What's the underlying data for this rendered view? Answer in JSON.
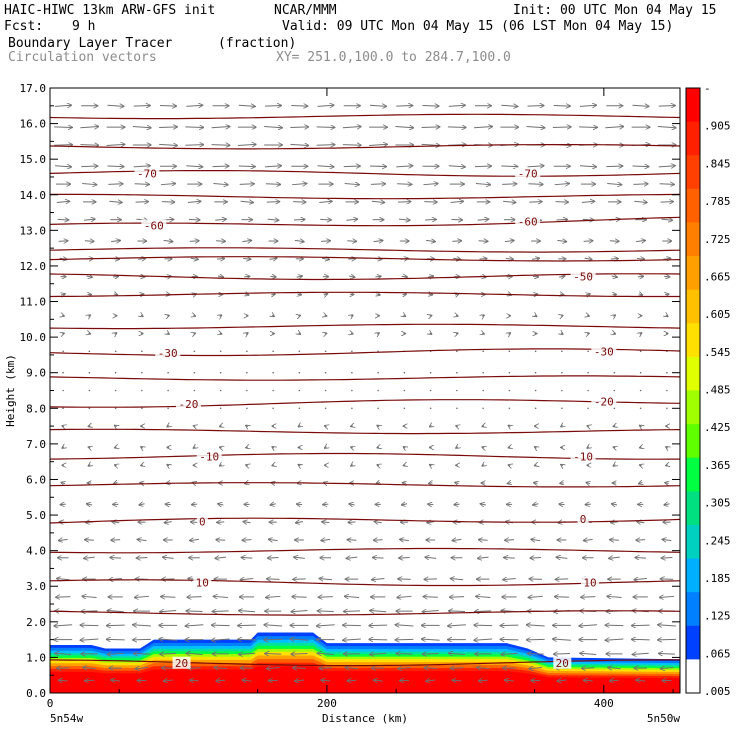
{
  "header": {
    "model": "HAIC-HIWC 13km ARW-GFS init",
    "org": "NCAR/MMM",
    "init": "Init: 00 UTC Mon 04 May 15",
    "fcst_label": "Fcst:",
    "fcst_value": "9 h",
    "valid": "Valid: 09 UTC Mon 04 May 15 (06 LST Mon 04 May 15)",
    "field": "Boundary Layer Tracer",
    "field_units": "(fraction)",
    "overlay": "Circulation vectors",
    "xy": "XY= 251.0,100.0 to 284.7,100.0"
  },
  "colors": {
    "contour": "#7a0a0a",
    "vector": "#707070",
    "axis": "#000000"
  },
  "chart_data": {
    "type": "cross-section",
    "ylabel": "Height (km)",
    "xlabel": "Distance (km)",
    "ylim": [
      0,
      17
    ],
    "xlim": [
      0,
      455
    ],
    "yticks": [
      "0.0",
      "1.0",
      "2.0",
      "3.0",
      "4.0",
      "5.0",
      "6.0",
      "7.0",
      "8.0",
      "9.0",
      "10.0",
      "11.0",
      "12.0",
      "13.0",
      "14.0",
      "15.0",
      "16.0",
      "17.0"
    ],
    "xticks": [
      {
        "value": 0,
        "label": "0"
      },
      {
        "value": 200,
        "label": "200"
      },
      {
        "value": 400,
        "label": "400"
      }
    ],
    "x_end_labels": {
      "left": "5n54w",
      "right": "5n50w"
    },
    "colorbar": {
      "labels": [
        "-",
        ".905",
        ".845",
        ".785",
        ".725",
        ".665",
        ".605",
        ".545",
        ".485",
        ".425",
        ".365",
        ".305",
        ".245",
        ".185",
        ".125",
        ".065",
        ".005"
      ],
      "colors": [
        "#ff0000",
        "#ff2000",
        "#ff4000",
        "#ff6000",
        "#ff8000",
        "#ffa000",
        "#ffc000",
        "#ffe000",
        "#e0ff00",
        "#a0ff00",
        "#60ff00",
        "#00ff40",
        "#00e080",
        "#00d0c0",
        "#00b0ff",
        "#0080ff",
        "#0040ff",
        "#ffffff"
      ]
    },
    "tracer_top_km": [
      [
        0,
        1.35
      ],
      [
        30,
        1.35
      ],
      [
        40,
        1.25
      ],
      [
        65,
        1.25
      ],
      [
        75,
        1.5
      ],
      [
        145,
        1.5
      ],
      [
        150,
        1.7
      ],
      [
        190,
        1.7
      ],
      [
        200,
        1.4
      ],
      [
        330,
        1.4
      ],
      [
        345,
        1.25
      ],
      [
        360,
        1.0
      ],
      [
        455,
        0.95
      ]
    ],
    "temperature_contours": [
      {
        "label": "-70",
        "heights_km": [
          14.6,
          14.6
        ],
        "label_x": [
          70,
          345
        ]
      },
      {
        "label": "-60",
        "heights_km": [
          13.1,
          13.3
        ],
        "label_x": [
          75,
          345
        ]
      },
      {
        "label": "-50",
        "heights_km": [
          11.7,
          11.7
        ],
        "label_x": [
          385
        ]
      },
      {
        "label": "-30",
        "heights_km": [
          9.55,
          9.6
        ],
        "label_x": [
          85,
          400
        ]
      },
      {
        "label": "-20",
        "heights_km": [
          8.1,
          8.2
        ],
        "label_x": [
          100,
          400
        ]
      },
      {
        "label": "-10",
        "heights_km": [
          6.65,
          6.65
        ],
        "label_x": [
          115,
          385
        ]
      },
      {
        "label": "0",
        "heights_km": [
          4.8,
          4.9
        ],
        "label_x": [
          110,
          385
        ]
      },
      {
        "label": "10",
        "heights_km": [
          3.1,
          3.1
        ],
        "label_x": [
          110,
          390
        ]
      },
      {
        "label": "20",
        "heights_km": [
          0.85,
          0.85
        ],
        "label_x": [
          95,
          370
        ]
      }
    ],
    "vector_rows_km": [
      16.5,
      15.9,
      15.4,
      14.8,
      14.3,
      13.8,
      13.3,
      12.7,
      12.2,
      11.7,
      11.2,
      10.6,
      10.1,
      9.6,
      9.0,
      8.5,
      8.0,
      7.5,
      6.9,
      6.4,
      5.9,
      5.3,
      4.8,
      4.3,
      3.8,
      3.2,
      2.7,
      2.3,
      1.9,
      1.5,
      1.1,
      0.7,
      0.35
    ],
    "vector_u_ms": [
      9,
      10,
      10,
      9,
      8,
      7,
      6,
      5,
      4,
      3,
      2,
      1,
      1,
      0,
      0,
      0,
      0,
      -1,
      -1,
      -1,
      -2,
      -3,
      -4,
      -5,
      -6,
      -7,
      -8,
      -9,
      -10,
      -10,
      -9,
      -7,
      -5
    ]
  }
}
